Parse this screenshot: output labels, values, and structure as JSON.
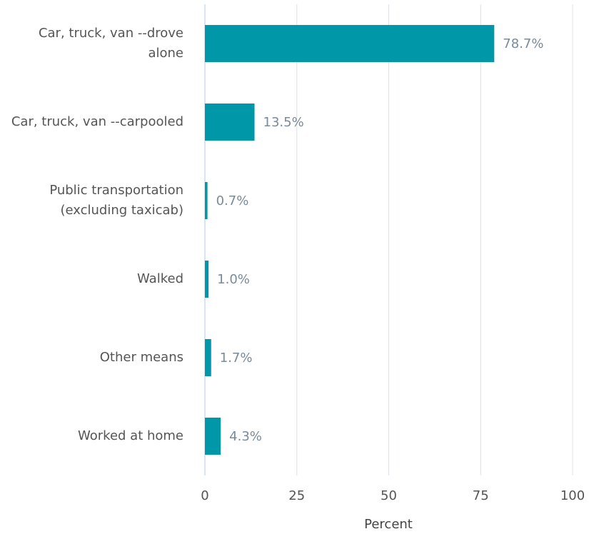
{
  "chart_data": {
    "type": "bar",
    "orientation": "horizontal",
    "categories": [
      "Car, truck, van --drove alone",
      "Car, truck, van --carpooled",
      "Public transportation (excluding taxicab)",
      "Walked",
      "Other means",
      "Worked at home"
    ],
    "values": [
      78.7,
      13.5,
      0.7,
      1.0,
      1.7,
      4.3
    ],
    "value_labels": [
      "78.7%",
      "13.5%",
      "0.7%",
      "1.0%",
      "1.7%",
      "4.3%"
    ],
    "color": "#0097a9",
    "xlabel": "Percent",
    "xlim": [
      0,
      100
    ],
    "xticks": [
      0,
      25,
      50,
      75,
      100
    ],
    "grid": true
  }
}
